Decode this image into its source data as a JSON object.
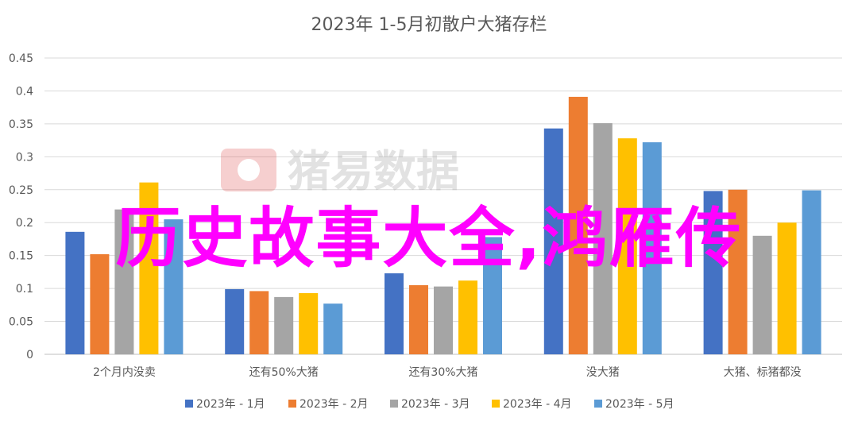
{
  "overlay_text": "历史故事大全,鸿雁传",
  "watermark": {
    "text": "猪易数据"
  },
  "chart_data": {
    "type": "bar",
    "title": "2023年 1-5月初散户大猪存栏",
    "categories": [
      "2个月内没卖",
      "还有50%大猪",
      "还有30%大猪",
      "没大猪",
      "大猪、标猪都没"
    ],
    "ylim": [
      0,
      0.45
    ],
    "yticks": [
      0,
      0.05,
      0.1,
      0.15,
      0.2,
      0.25,
      0.3,
      0.35,
      0.4,
      0.45
    ],
    "ytick_labels": [
      "0",
      "0.05",
      "0.1",
      "0.15",
      "0.2",
      "0.25",
      "0.3",
      "0.35",
      "0.4",
      "0.45"
    ],
    "grid": true,
    "legend_position": "bottom",
    "series": [
      {
        "name": "2023年 - 1月",
        "color": "#4472C4",
        "values": [
          0.186,
          0.099,
          0.123,
          0.343,
          0.248
        ]
      },
      {
        "name": "2023年 - 2月",
        "color": "#ED7D31",
        "values": [
          0.152,
          0.096,
          0.105,
          0.391,
          0.25
        ]
      },
      {
        "name": "2023年 - 3月",
        "color": "#A5A5A5",
        "values": [
          0.22,
          0.087,
          0.103,
          0.351,
          0.18
        ]
      },
      {
        "name": "2023年 - 4月",
        "color": "#FFC000",
        "values": [
          0.261,
          0.093,
          0.112,
          0.328,
          0.2
        ]
      },
      {
        "name": "2023年 - 5月",
        "color": "#5B9BD5",
        "values": [
          0.205,
          0.077,
          0.178,
          0.322,
          0.249
        ]
      }
    ]
  }
}
